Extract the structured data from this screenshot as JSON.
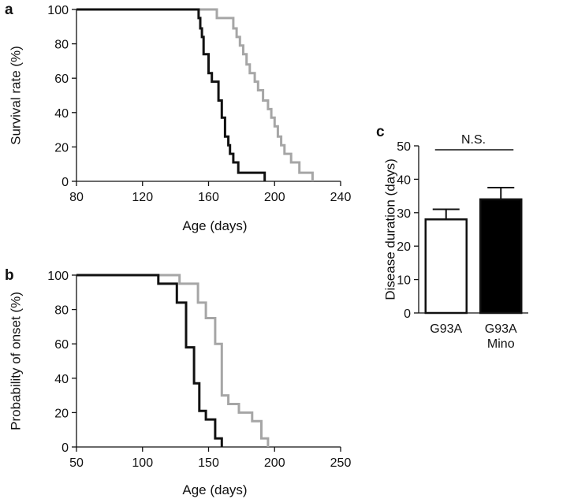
{
  "chart_data": [
    {
      "panel": "a",
      "type": "line",
      "step": true,
      "xlabel": "Age (days)",
      "ylabel": "Survival rate (%)",
      "xlim": [
        80,
        240
      ],
      "ylim": [
        0,
        100
      ],
      "xticks": [
        80,
        120,
        160,
        200,
        240
      ],
      "yticks": [
        0,
        20,
        40,
        60,
        80,
        100
      ],
      "series": [
        {
          "name": "gray",
          "color": "#a6a6a6",
          "x": [
            80,
            165,
            165,
            175,
            175,
            177,
            177,
            179,
            179,
            181,
            181,
            183,
            183,
            185,
            185,
            188,
            188,
            190,
            190,
            193,
            193,
            196,
            196,
            198,
            198,
            200,
            200,
            202,
            202,
            204,
            204,
            206,
            206,
            210,
            210,
            215,
            215,
            223,
            223
          ],
          "y": [
            100,
            100,
            95,
            95,
            89,
            89,
            84,
            84,
            79,
            79,
            74,
            74,
            68,
            68,
            63,
            63,
            58,
            58,
            53,
            53,
            47,
            47,
            42,
            42,
            37,
            37,
            32,
            32,
            26,
            26,
            21,
            21,
            16,
            16,
            11,
            11,
            5,
            5,
            0
          ]
        },
        {
          "name": "black",
          "color": "#111111",
          "x": [
            80,
            154,
            154,
            155,
            155,
            156,
            156,
            157,
            157,
            160,
            160,
            162,
            162,
            166,
            166,
            168,
            168,
            170,
            170,
            172,
            172,
            173,
            173,
            175,
            175,
            178,
            178,
            182,
            182,
            194,
            194
          ],
          "y": [
            100,
            100,
            95,
            95,
            89,
            89,
            84,
            84,
            74,
            74,
            63,
            63,
            58,
            58,
            47,
            47,
            37,
            37,
            26,
            26,
            21,
            21,
            16,
            16,
            11,
            11,
            5,
            5,
            5,
            5,
            0
          ]
        }
      ]
    },
    {
      "panel": "b",
      "type": "line",
      "step": true,
      "xlabel": "Age (days)",
      "ylabel": "Probability of onset (%)",
      "xlim": [
        50,
        250
      ],
      "ylim": [
        0,
        100
      ],
      "xticks": [
        50,
        100,
        150,
        200,
        250
      ],
      "yticks": [
        0,
        20,
        40,
        60,
        80,
        100
      ],
      "series": [
        {
          "name": "gray",
          "color": "#a6a6a6",
          "x": [
            50,
            128,
            128,
            142,
            142,
            148,
            148,
            155,
            155,
            160,
            160,
            165,
            165,
            173,
            173,
            183,
            183,
            190,
            190,
            195,
            195
          ],
          "y": [
            100,
            100,
            95,
            95,
            84,
            84,
            75,
            75,
            60,
            60,
            30,
            30,
            25,
            25,
            20,
            20,
            15,
            15,
            5,
            5,
            0
          ]
        },
        {
          "name": "black",
          "color": "#111111",
          "x": [
            50,
            112,
            112,
            126,
            126,
            133,
            133,
            139,
            139,
            143,
            143,
            148,
            148,
            155,
            155,
            160,
            160
          ],
          "y": [
            100,
            100,
            95,
            95,
            84,
            84,
            58,
            58,
            37,
            37,
            21,
            21,
            16,
            16,
            5,
            5,
            0
          ]
        }
      ]
    },
    {
      "panel": "c",
      "type": "bar",
      "ylabel": "Disease duration (days)",
      "ylim": [
        0,
        50
      ],
      "yticks": [
        0,
        10,
        20,
        30,
        40,
        50
      ],
      "categories": [
        "G93A",
        "G93A\nMino"
      ],
      "category_lines": [
        [
          "G93A"
        ],
        [
          "G93A",
          "Mino"
        ]
      ],
      "values": [
        28,
        34
      ],
      "errors": [
        3,
        3.5
      ],
      "bar_fills": [
        "#ffffff",
        "#000000"
      ],
      "annotation": "N.S."
    }
  ]
}
